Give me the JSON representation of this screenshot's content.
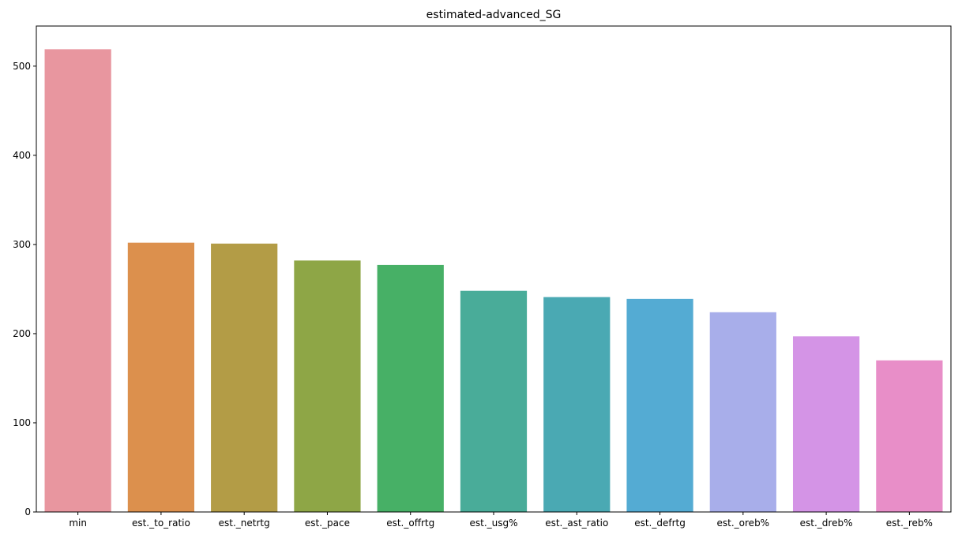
{
  "chart_data": {
    "type": "bar",
    "title": "estimated-advanced_SG",
    "xlabel": "",
    "ylabel": "",
    "categories": [
      "min",
      "est._to_ratio",
      "est._netrtg",
      "est._pace",
      "est._offrtg",
      "est._usg%",
      "est._ast_ratio",
      "est._defrtg",
      "est._oreb%",
      "est._dreb%",
      "est._reb%"
    ],
    "values": [
      519,
      302,
      301,
      282,
      277,
      248,
      241,
      239,
      224,
      197,
      170
    ],
    "colors": [
      "#e8969f",
      "#dc904d",
      "#b39c46",
      "#8ea646",
      "#47b066",
      "#49ac99",
      "#4aa9b3",
      "#54abd3",
      "#a8aeea",
      "#d494e6",
      "#e88ec8"
    ],
    "ylim": [
      0,
      545
    ],
    "yticks": [
      0,
      100,
      200,
      300,
      400,
      500
    ],
    "grid": false,
    "legend": "none"
  }
}
